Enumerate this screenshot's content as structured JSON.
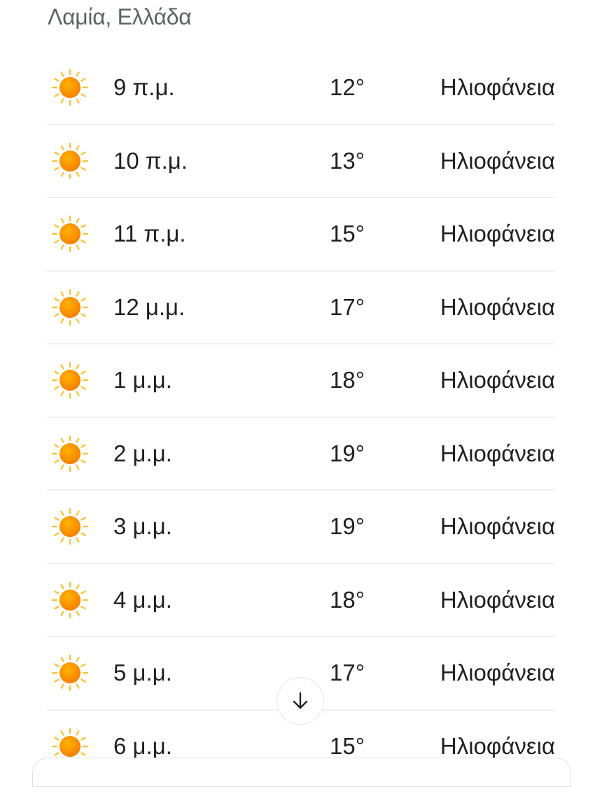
{
  "location": "Λαμία, Ελλάδα",
  "colors": {
    "sun_core": "#ff9800",
    "sun_rays": "#fbc02d",
    "text": "#202124",
    "muted": "#5f6368"
  },
  "hours": [
    {
      "time": "9 π.μ.",
      "temp": "12°",
      "condition": "Ηλιοφάνεια",
      "icon": "sun-icon"
    },
    {
      "time": "10 π.μ.",
      "temp": "13°",
      "condition": "Ηλιοφάνεια",
      "icon": "sun-icon"
    },
    {
      "time": "11 π.μ.",
      "temp": "15°",
      "condition": "Ηλιοφάνεια",
      "icon": "sun-icon"
    },
    {
      "time": "12 μ.μ.",
      "temp": "17°",
      "condition": "Ηλιοφάνεια",
      "icon": "sun-icon"
    },
    {
      "time": "1 μ.μ.",
      "temp": "18°",
      "condition": "Ηλιοφάνεια",
      "icon": "sun-icon"
    },
    {
      "time": "2 μ.μ.",
      "temp": "19°",
      "condition": "Ηλιοφάνεια",
      "icon": "sun-icon"
    },
    {
      "time": "3 μ.μ.",
      "temp": "19°",
      "condition": "Ηλιοφάνεια",
      "icon": "sun-icon"
    },
    {
      "time": "4 μ.μ.",
      "temp": "18°",
      "condition": "Ηλιοφάνεια",
      "icon": "sun-icon"
    },
    {
      "time": "5 μ.μ.",
      "temp": "17°",
      "condition": "Ηλιοφάνεια",
      "icon": "sun-icon"
    },
    {
      "time": "6 μ.μ.",
      "temp": "15°",
      "condition": "Ηλιοφάνεια",
      "icon": "sun-icon"
    }
  ],
  "scroll_button_icon": "arrow-down-icon"
}
